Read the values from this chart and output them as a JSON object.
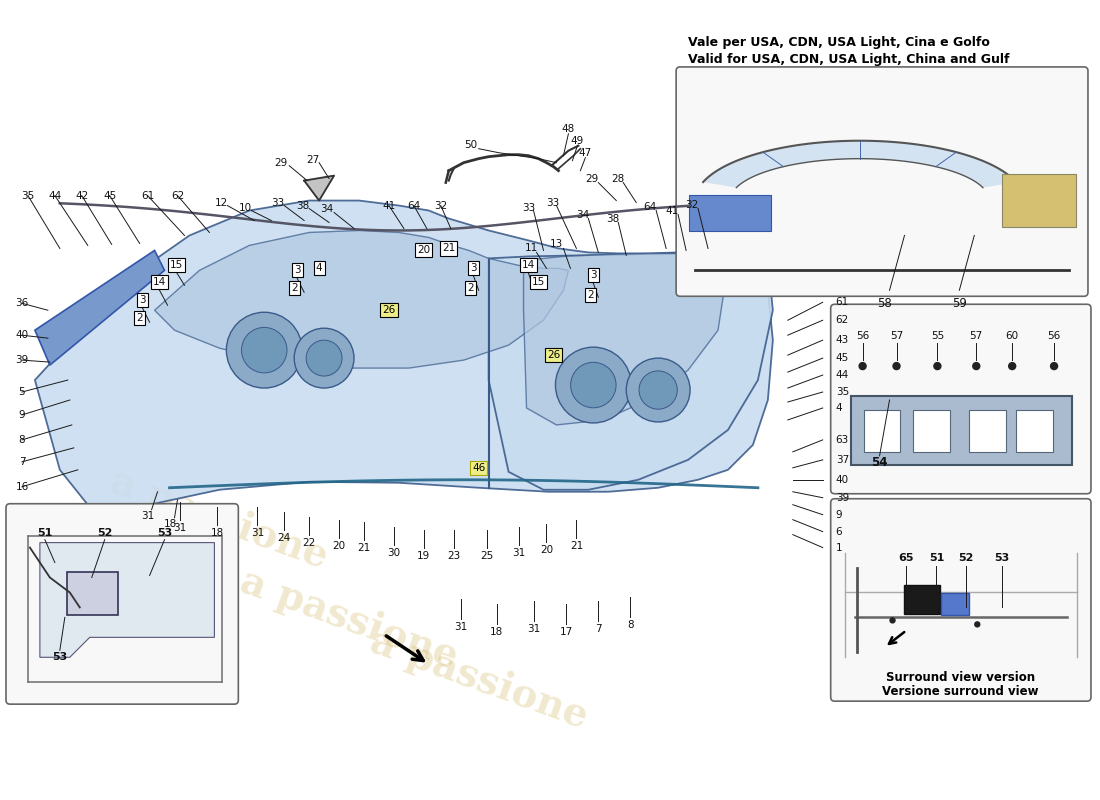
{
  "bg_color": "#ffffff",
  "top_note_line1": "Vale per USA, CDN, USA Light, Cina e Golfo",
  "top_note_line2": "Valid for USA, CDN, USA Light, China and Gulf",
  "surround_caption_line1": "Versione surround view",
  "surround_caption_line2": "Surround view version",
  "panel_blue": "#c8dcf0",
  "panel_blue_dark": "#a8c4e0",
  "panel_edge": "#3a5a8a",
  "line_col": "#1a1a1a",
  "box_face": "#ffffff",
  "inset_face": "#f8f8f8",
  "yellow_col": "#d4c070",
  "watermark_col": "#c8a840"
}
